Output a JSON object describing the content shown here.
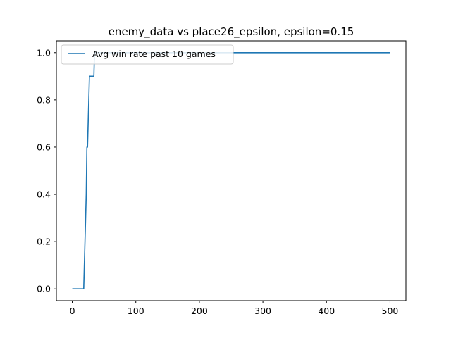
{
  "chart_data": {
    "type": "line",
    "title": "enemy_data vs place26_epsilon, epsilon=0.15",
    "xlabel": "",
    "ylabel": "",
    "xlim": [
      -25,
      525
    ],
    "ylim": [
      -0.05,
      1.05
    ],
    "xticks": [
      0,
      100,
      200,
      300,
      400,
      500
    ],
    "yticks": [
      0.0,
      0.2,
      0.4,
      0.6,
      0.8,
      1.0
    ],
    "xtick_labels": [
      "0",
      "100",
      "200",
      "300",
      "400",
      "500"
    ],
    "ytick_labels": [
      "0.0",
      "0.2",
      "0.4",
      "0.6",
      "0.8",
      "1.0"
    ],
    "grid": false,
    "legend_position": "top-left",
    "series": [
      {
        "name": "Avg win rate past 10 games",
        "color": "#1f77b4",
        "points": [
          [
            0,
            0.0
          ],
          [
            18,
            0.0
          ],
          [
            20,
            0.2
          ],
          [
            22,
            0.4
          ],
          [
            23,
            0.6
          ],
          [
            24,
            0.6
          ],
          [
            25,
            0.7
          ],
          [
            27,
            0.9
          ],
          [
            29,
            0.9
          ],
          [
            32,
            0.9
          ],
          [
            34,
            0.9
          ],
          [
            35,
            1.0
          ],
          [
            37,
            1.0
          ],
          [
            500,
            1.0
          ]
        ]
      }
    ]
  }
}
